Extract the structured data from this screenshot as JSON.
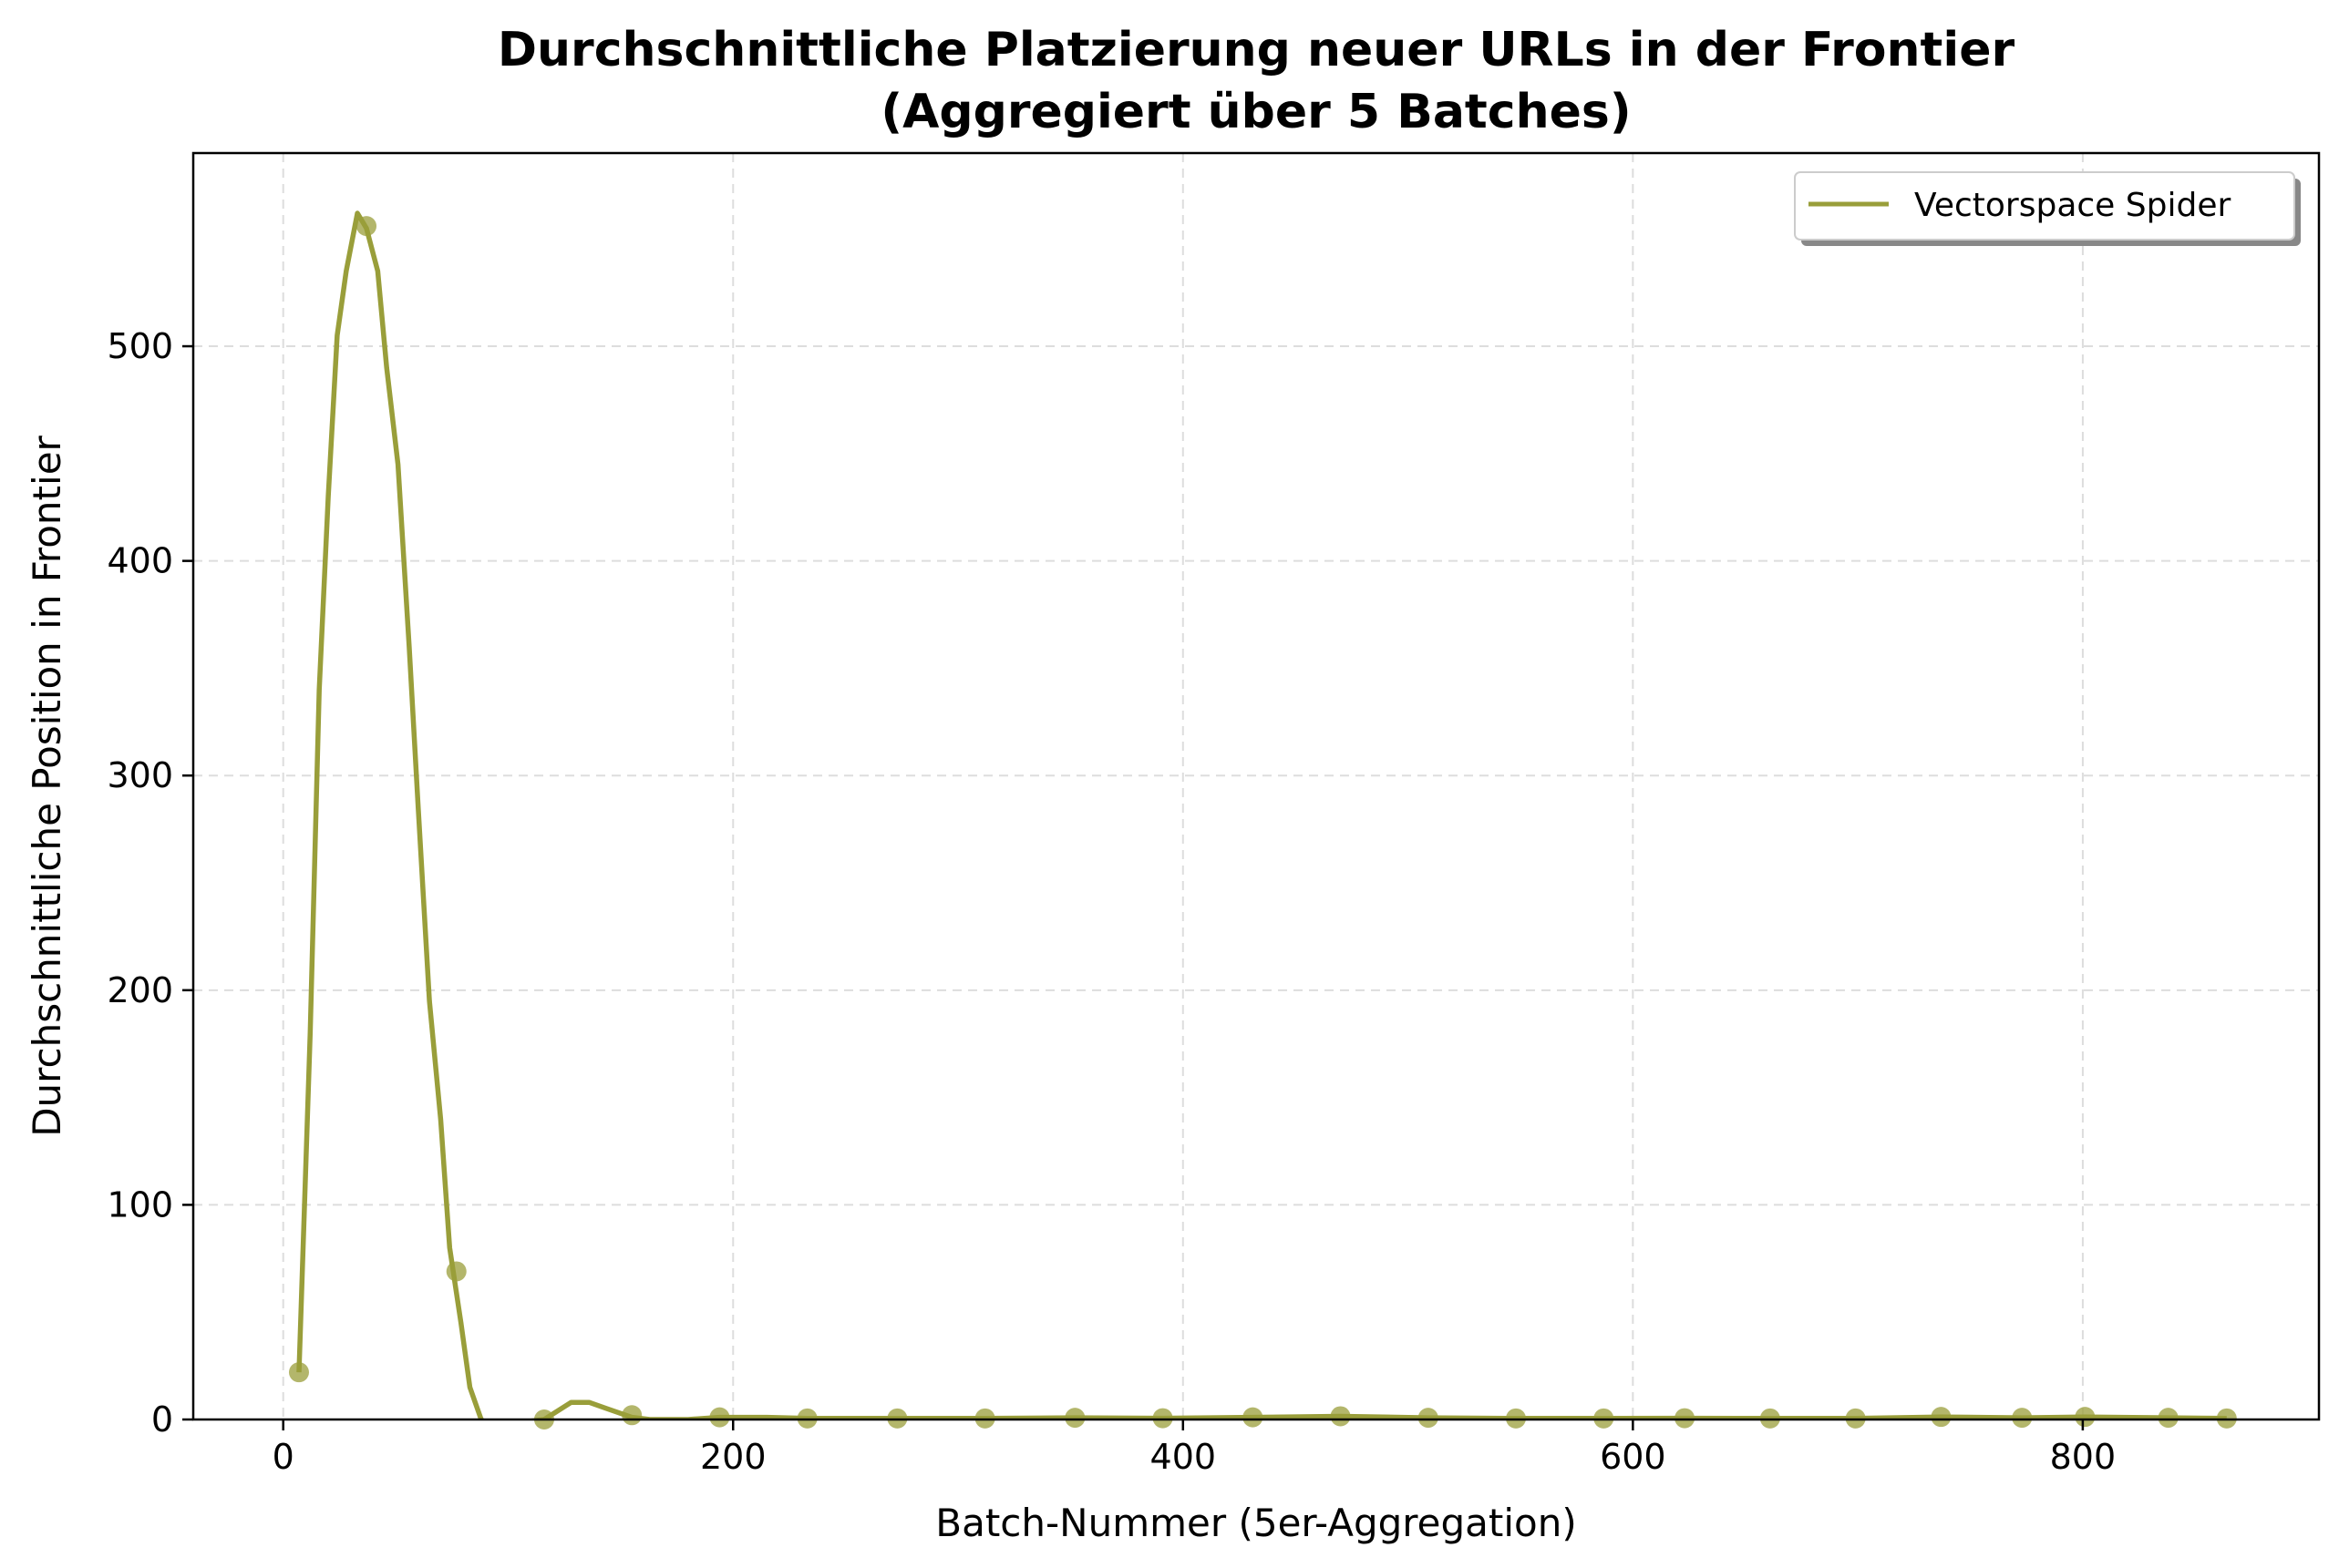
{
  "chart_data": {
    "type": "line",
    "title": "Durchschnittliche Platzierung neuer URLs in der Frontier",
    "subtitle": "(Aggregiert über 5 Batches)",
    "xlabel": "Batch-Nummer (5er-Aggregation)",
    "ylabel": "Durchschnittliche Position in Frontier",
    "xlim": [
      -40,
      905
    ],
    "ylim": [
      0,
      590
    ],
    "xticks": [
      0,
      200,
      400,
      600,
      800
    ],
    "yticks": [
      0,
      100,
      200,
      300,
      400,
      500
    ],
    "grid": true,
    "legend_position": "top-right",
    "series": [
      {
        "name": "Vectorspace Spider",
        "color": "#999e3a",
        "line_x": [
          7,
          12,
          16,
          20,
          24,
          28,
          33,
          37,
          42,
          46,
          51,
          56,
          60,
          65,
          70,
          74,
          79,
          83,
          88,
          92,
          116,
          128,
          136,
          144,
          155,
          163,
          180,
          194,
          215,
          233,
          273,
          312,
          352,
          391,
          431,
          470,
          509,
          548,
          587,
          623,
          661,
          699,
          737,
          773,
          801,
          838,
          864
        ],
        "line_y": [
          22,
          180,
          340,
          430,
          505,
          535,
          562,
          555,
          535,
          490,
          445,
          360,
          285,
          195,
          140,
          80,
          45,
          15,
          0,
          -3,
          0,
          8,
          8,
          5,
          1,
          0,
          0,
          1,
          1,
          0.5,
          0.5,
          0.5,
          0.8,
          0.6,
          1,
          1.5,
          0.8,
          0.5,
          0.5,
          0.6,
          0.5,
          0.5,
          1.2,
          0.8,
          1.2,
          0.8,
          0.5
        ],
        "marker_x": [
          7,
          37,
          77,
          116,
          155,
          194,
          233,
          273,
          312,
          352,
          391,
          431,
          470,
          509,
          548,
          587,
          623,
          661,
          699,
          737,
          773,
          801,
          838,
          864
        ],
        "marker_y": [
          22,
          556,
          69,
          0,
          2,
          1,
          0.5,
          0.5,
          0.5,
          0.8,
          0.6,
          1,
          1.5,
          0.8,
          0.5,
          0.5,
          0.6,
          0.5,
          0.5,
          1.2,
          0.8,
          1.2,
          0.8,
          0.5
        ]
      }
    ]
  }
}
